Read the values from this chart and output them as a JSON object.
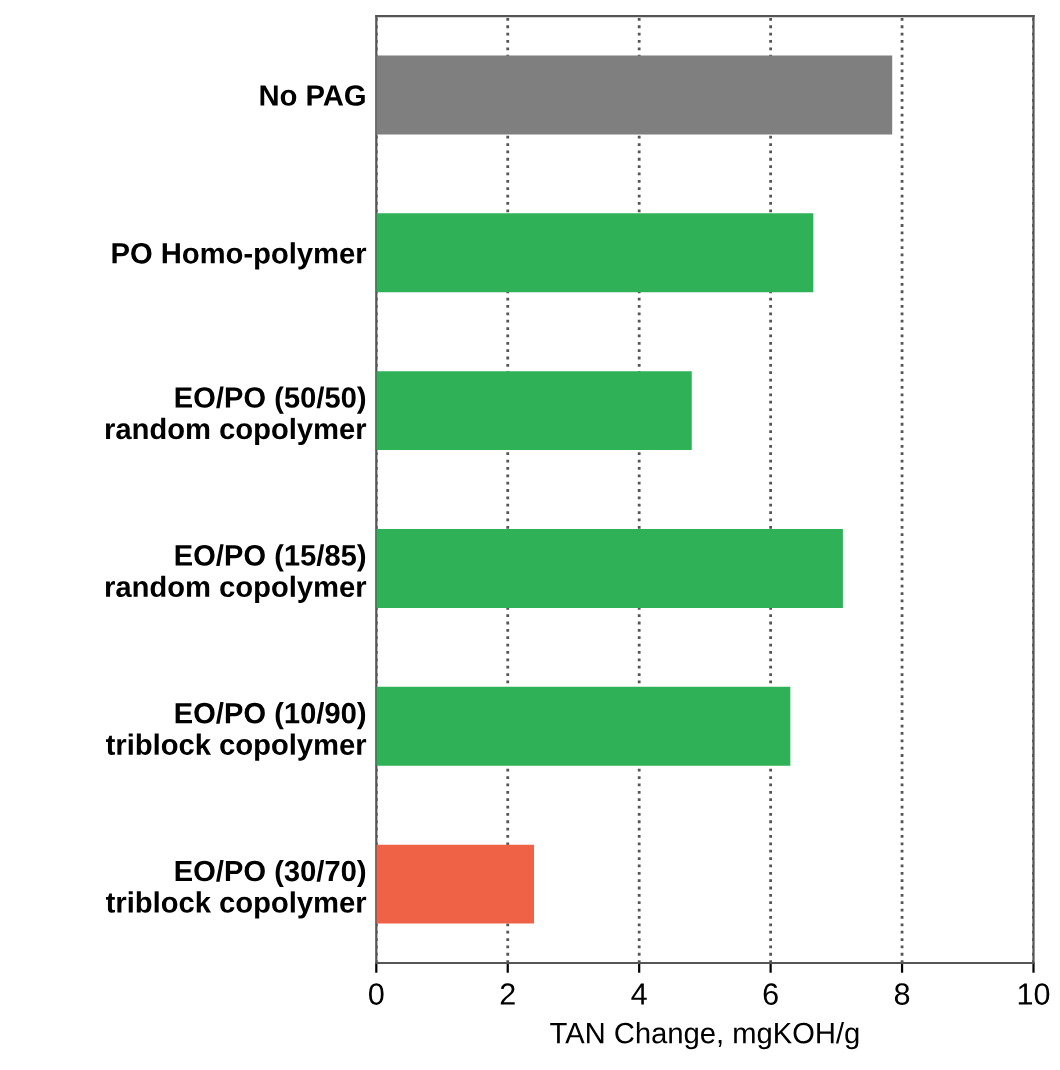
{
  "chart_data": {
    "type": "bar",
    "orientation": "horizontal",
    "xlabel": "TAN Change, mgKOH/g",
    "categories": [
      "No PAG",
      "PO Homo-polymer",
      "EO/PO (50/50)\nrandom copolymer",
      "EO/PO (15/85)\nrandom copolymer",
      "EO/PO (10/90)\ntriblock copolymer",
      "EO/PO (30/70)\ntriblock copolymer"
    ],
    "values": [
      7.85,
      6.65,
      4.8,
      7.1,
      6.3,
      2.4
    ],
    "colors": [
      "#7f7f7f",
      "#2eb157",
      "#2eb157",
      "#2eb157",
      "#2eb157",
      "#ef6245"
    ],
    "xlim": [
      0,
      10
    ],
    "xticks": [
      0,
      2,
      4,
      6,
      8,
      10
    ],
    "grid": "x"
  }
}
